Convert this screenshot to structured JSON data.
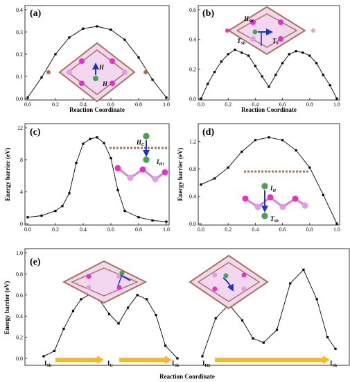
{
  "chart_data": [
    {
      "type": "line",
      "panel_label": "(a)",
      "xlabel": "Reaction Coordinate",
      "ylabel": "",
      "xlim": [
        0,
        1
      ],
      "ylim": [
        0,
        0.4
      ],
      "xticks": [
        "0.0",
        "0.2",
        "0.4",
        "0.6",
        "0.8",
        "1.0"
      ],
      "yticks": [
        "0.0",
        "0.1",
        "0.2",
        "0.3",
        "0.4"
      ],
      "x": [
        0,
        0.1,
        0.2,
        0.3,
        0.4,
        0.5,
        0.6,
        0.7,
        0.8,
        0.9,
        1.0
      ],
      "y": [
        0.005,
        0.095,
        0.2,
        0.275,
        0.315,
        0.325,
        0.31,
        0.265,
        0.185,
        0.085,
        0.005
      ],
      "annotations": [
        "H",
        "H"
      ]
    },
    {
      "type": "line",
      "panel_label": "(b)",
      "xlabel": "Reaction Coordinate",
      "ylabel": "",
      "xlim": [
        0,
        1
      ],
      "ylim": [
        0,
        0.6
      ],
      "xticks": [
        "0.0",
        "0.2",
        "0.4",
        "0.6",
        "0.8",
        "1.0"
      ],
      "yticks": [
        "0.0",
        "0.2",
        "0.4",
        "0.6"
      ],
      "x": [
        0,
        0.05,
        0.1,
        0.15,
        0.2,
        0.25,
        0.3,
        0.35,
        0.4,
        0.45,
        0.5,
        0.55,
        0.6,
        0.65,
        0.7,
        0.75,
        0.8,
        0.85,
        0.9,
        0.95,
        1.0
      ],
      "y": [
        0.0,
        0.1,
        0.18,
        0.25,
        0.3,
        0.33,
        0.31,
        0.29,
        0.22,
        0.15,
        0.08,
        0.16,
        0.24,
        0.3,
        0.32,
        0.31,
        0.29,
        0.24,
        0.16,
        0.09,
        0.0
      ],
      "annotations": [
        "H",
        "Sb",
        "T",
        "Sb",
        "T",
        "S"
      ]
    },
    {
      "type": "line",
      "panel_label": "(c)",
      "xlabel": "",
      "ylabel": "Energy barrier (eV)",
      "xlim": [
        0,
        1
      ],
      "ylim": [
        0,
        12
      ],
      "xticks": [
        "0.0",
        "0.2",
        "0.4",
        "0.6",
        "0.8",
        "1.0"
      ],
      "yticks": [
        "0",
        "4",
        "8",
        "12"
      ],
      "x": [
        0,
        0.1,
        0.2,
        0.25,
        0.3,
        0.35,
        0.4,
        0.45,
        0.5,
        0.55,
        0.6,
        0.65,
        0.7,
        0.8,
        0.9,
        1.0
      ],
      "y": [
        0.8,
        1.0,
        1.6,
        2.2,
        3.8,
        7.6,
        10.0,
        10.6,
        10.8,
        10.1,
        8.2,
        4.2,
        1.6,
        0.8,
        0.4,
        0.25
      ],
      "annotations": [
        "H",
        "C",
        "I",
        "H1"
      ]
    },
    {
      "type": "line",
      "panel_label": "(d)",
      "xlabel": "",
      "ylabel": "Energy barrier (eV)",
      "xlim": [
        0,
        1
      ],
      "ylim": [
        0,
        1.4
      ],
      "xticks": [
        "0.0",
        "0.2",
        "0.4",
        "0.6",
        "0.8",
        "1.0"
      ],
      "yticks": [
        "0.0",
        "0.4",
        "0.8",
        "1.2"
      ],
      "x": [
        0,
        0.1,
        0.2,
        0.3,
        0.4,
        0.5,
        0.6,
        0.7,
        0.8,
        0.9,
        1.0
      ],
      "y": [
        0.57,
        0.66,
        0.82,
        1.05,
        1.22,
        1.26,
        1.22,
        1.07,
        0.82,
        0.42,
        0.0
      ],
      "annotations": [
        "I",
        "H",
        "T",
        "Sb"
      ]
    },
    {
      "type": "line",
      "panel_label": "(e)",
      "xlabel": "Reaction Coordinate",
      "ylabel": "Energy barrier (eV)",
      "ylim": [
        0,
        1.0
      ],
      "yticks": [
        "0.0",
        "0.2",
        "0.4",
        "0.6",
        "0.8",
        "1.0"
      ],
      "series": [
        {
          "x": [
            0,
            0.08,
            0.15,
            0.22,
            0.28,
            0.35,
            0.42,
            0.49,
            0.56,
            0.63,
            0.7,
            0.77,
            0.84,
            0.91,
            1.0
          ],
          "y": [
            0.02,
            0.07,
            0.28,
            0.45,
            0.56,
            0.61,
            0.55,
            0.42,
            0.33,
            0.48,
            0.6,
            0.56,
            0.41,
            0.12,
            0.0
          ]
        },
        {
          "x": [
            0,
            0.1,
            0.2,
            0.3,
            0.38,
            0.46,
            0.56,
            0.66,
            0.76,
            0.86,
            0.94,
            1.0
          ],
          "y": [
            0.02,
            0.38,
            0.51,
            0.36,
            0.19,
            0.15,
            0.27,
            0.71,
            0.84,
            0.56,
            0.2,
            0.09
          ]
        }
      ],
      "x_markers": [
        "I",
        "Sb",
        "I",
        "C",
        "I",
        "Sb",
        "I",
        "H2",
        "I",
        "Sb"
      ]
    }
  ],
  "colors": {
    "arrow": "#ffb81c",
    "blue_arrow": "#1a35c8",
    "carbon": "#a5735a",
    "sb": "#e830c8",
    "sb_light": "#e59ce4",
    "h": "#3fa84a",
    "line": "#000000"
  }
}
